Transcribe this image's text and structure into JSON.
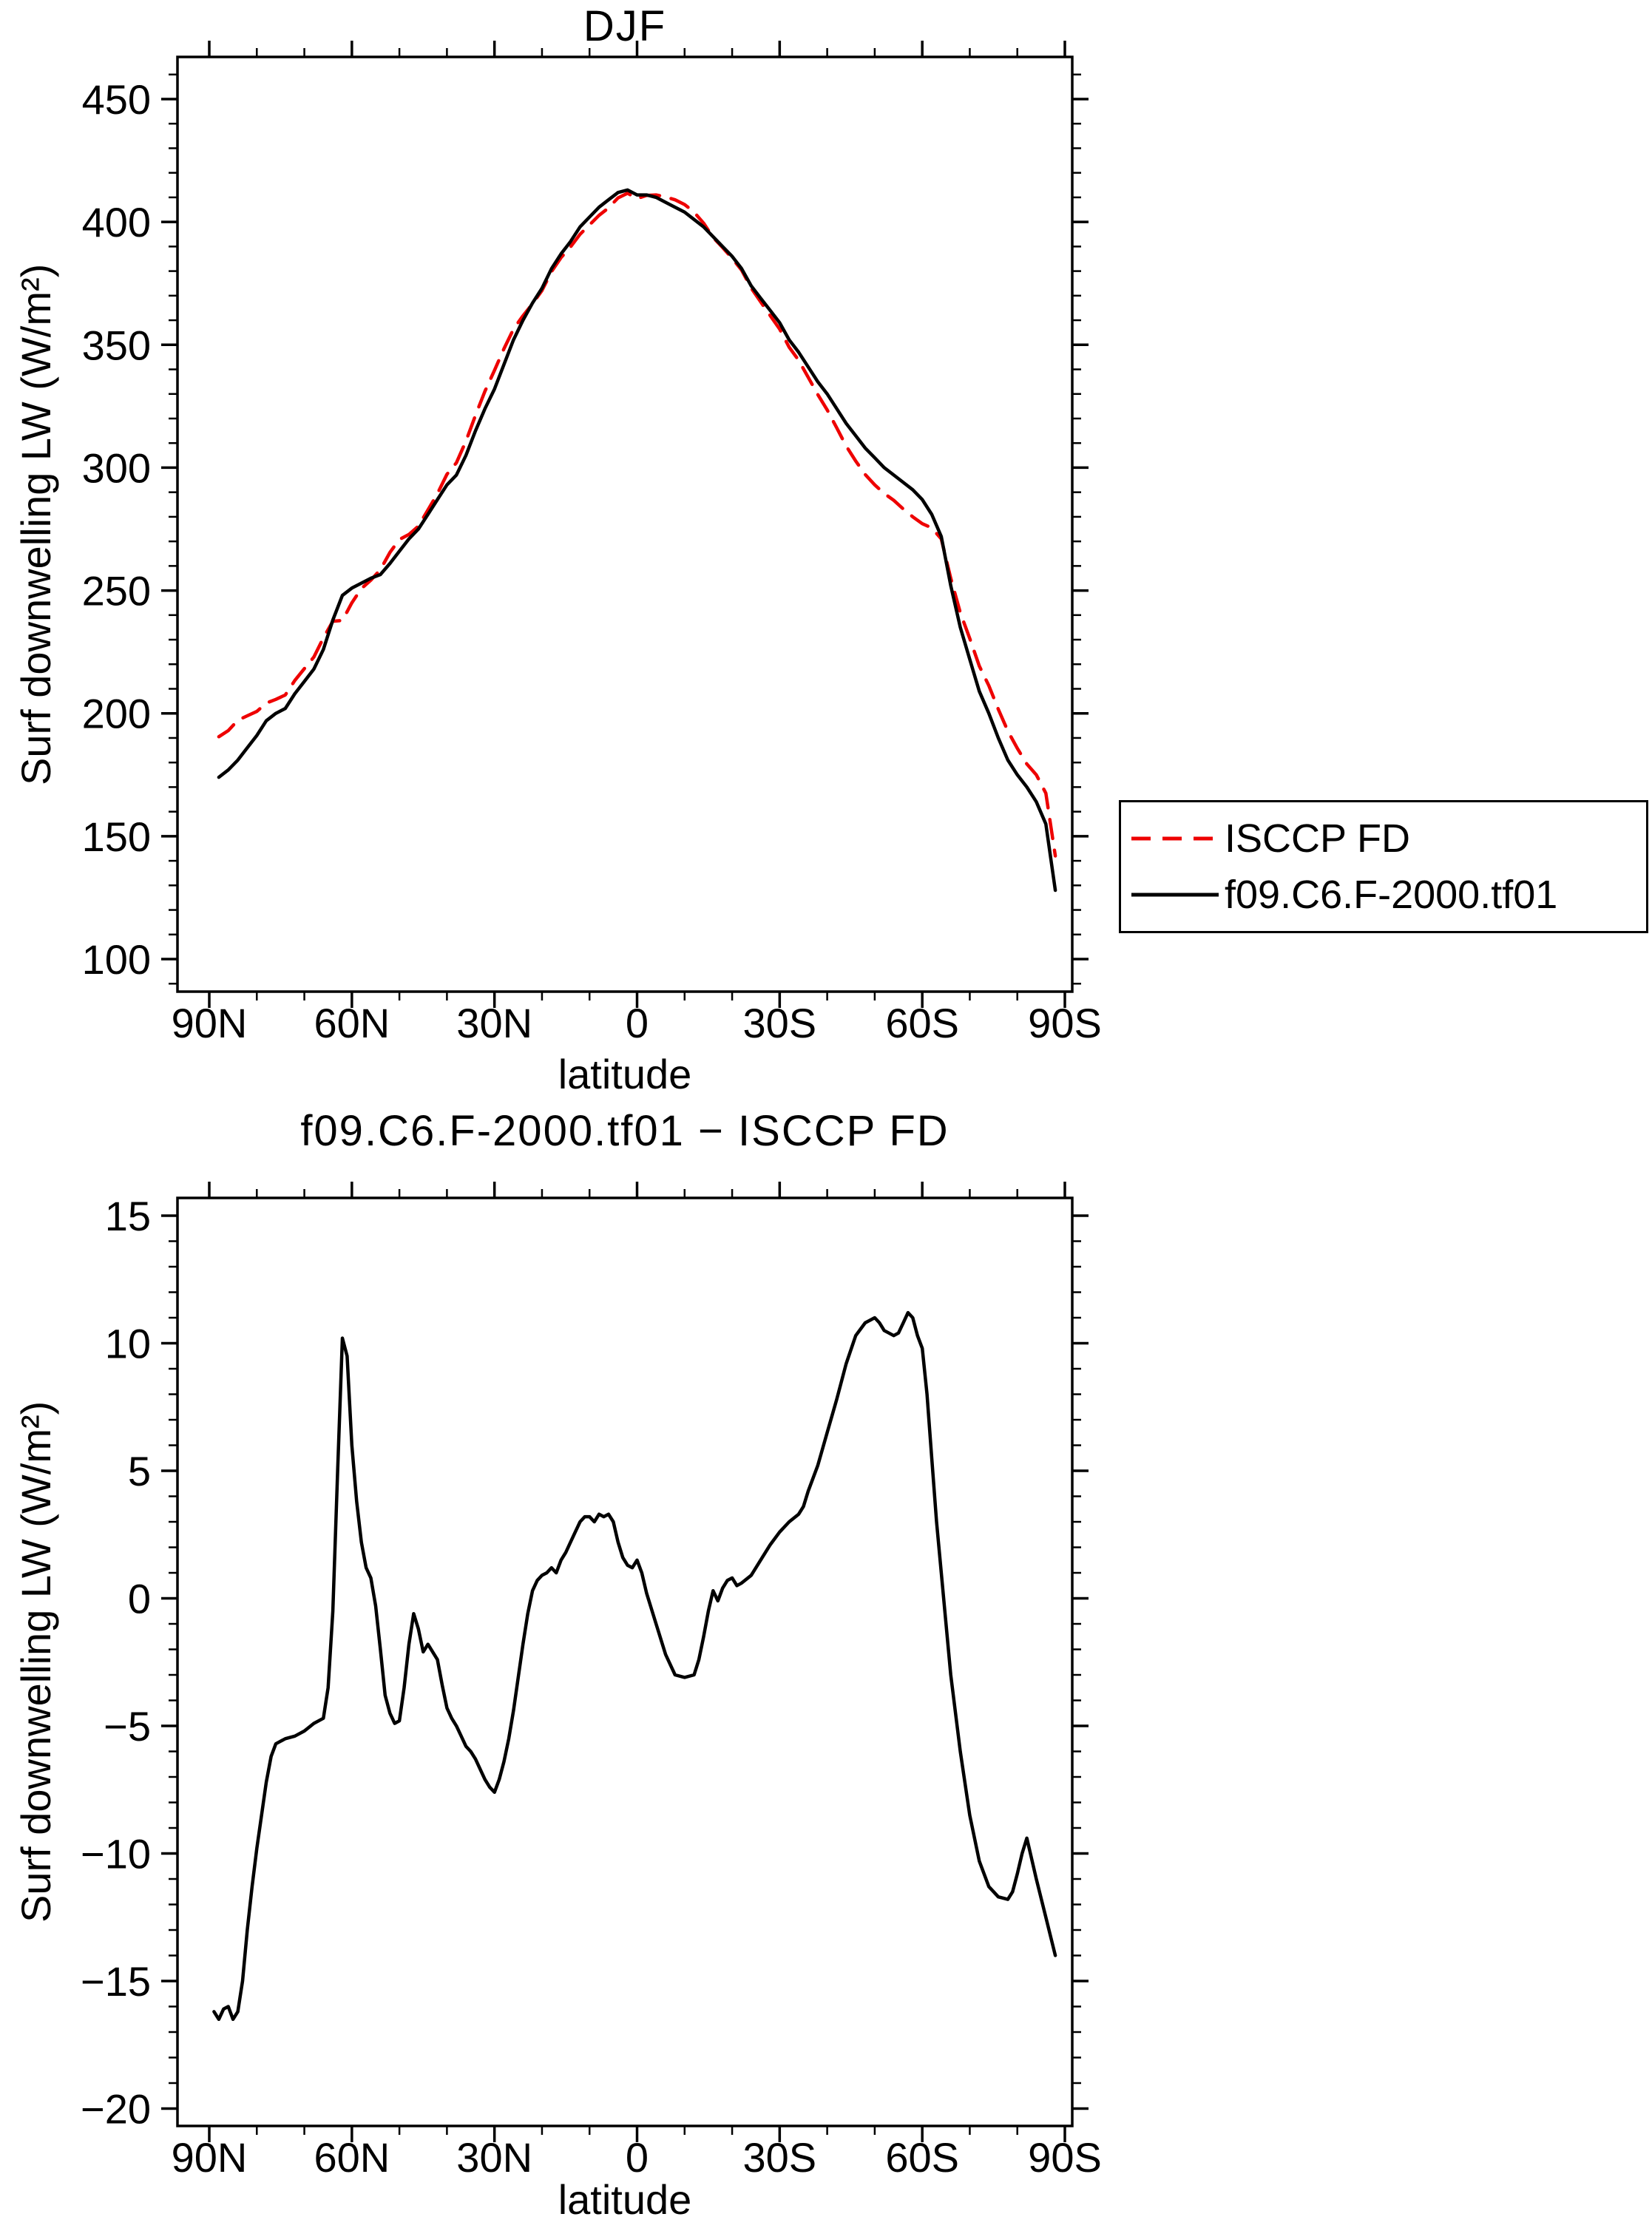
{
  "chart_data": [
    {
      "type": "line",
      "title": "DJF",
      "xlabel": "latitude",
      "ylabel": "Surf downwelling LW (W/m²)",
      "ylim": [
        100,
        450
      ],
      "xlim_deg": [
        90,
        -90
      ],
      "grid": false,
      "legend": {
        "position": "outside-right",
        "border": true
      },
      "xticks": {
        "values": [
          90,
          60,
          30,
          0,
          -30,
          -60,
          -90
        ],
        "labels": [
          "90N",
          "60N",
          "30N",
          "0",
          "30S",
          "60S",
          "90S"
        ],
        "minor_step": 10
      },
      "yticks": {
        "values": [
          450,
          400,
          350,
          300,
          250,
          200,
          150,
          100
        ],
        "labels": [
          "450",
          "400",
          "350",
          "300",
          "250",
          "200",
          "150",
          "100"
        ],
        "minor_step": 10
      },
      "series": [
        {
          "name": "ISCCP FD",
          "color": "#ee0000",
          "style": "dashed",
          "x": [
            88,
            86,
            84,
            82,
            80,
            78,
            76,
            74,
            72,
            70,
            68,
            66,
            64,
            62,
            60,
            58,
            56,
            54,
            52,
            50,
            48,
            46,
            44,
            42,
            40,
            38,
            36,
            34,
            32,
            30,
            28,
            26,
            24,
            22,
            20,
            18,
            16,
            14,
            12,
            10,
            8,
            6,
            4,
            2,
            0,
            -2,
            -4,
            -6,
            -8,
            -10,
            -12,
            -14,
            -16,
            -18,
            -20,
            -22,
            -24,
            -26,
            -28,
            -30,
            -32,
            -34,
            -36,
            -38,
            -40,
            -42,
            -44,
            -46,
            -48,
            -50,
            -52,
            -54,
            -56,
            -58,
            -60,
            -62,
            -64,
            -66,
            -68,
            -70,
            -72,
            -74,
            -76,
            -78,
            -80,
            -82,
            -84,
            -86,
            -88
          ],
          "y": [
            190.5,
            193,
            197.2,
            199,
            200.8,
            204.2,
            205.7,
            207.5,
            213.4,
            218.2,
            222.9,
            230.7,
            237.5,
            237.8,
            245,
            250.8,
            254.2,
            258.5,
            265.5,
            270.8,
            272.8,
            276.2,
            282.8,
            289.4,
            297.3,
            302,
            310.8,
            321.3,
            331.1,
            339.6,
            348.4,
            356.4,
            361.8,
            366.7,
            372.1,
            379.8,
            385.5,
            389.8,
            395,
            398.8,
            402.7,
            405.7,
            409.8,
            411.7,
            409.5,
            410.8,
            411,
            410.2,
            409,
            407.1,
            404,
            399.5,
            393.7,
            389.6,
            385.2,
            380.4,
            373.1,
            367.5,
            361.9,
            356.4,
            349,
            343.7,
            336.8,
            329.8,
            323.5,
            316.2,
            308.8,
            302.7,
            297.2,
            293,
            289.5,
            286.7,
            283.2,
            280,
            277.2,
            275.5,
            271,
            255,
            241,
            230.5,
            219.3,
            211.3,
            201.7,
            192.8,
            185.8,
            179.4,
            175,
            167.5,
            142
          ]
        },
        {
          "name": "f09.C6.F-2000.tf01",
          "color": "#000000",
          "style": "solid",
          "x": [
            88,
            86,
            84,
            82,
            80,
            78,
            76,
            74,
            72,
            70,
            68,
            66,
            64,
            62,
            60,
            58,
            56,
            54,
            52,
            50,
            48,
            46,
            44,
            42,
            40,
            38,
            36,
            34,
            32,
            30,
            28,
            26,
            24,
            22,
            20,
            18,
            16,
            14,
            12,
            10,
            8,
            6,
            4,
            2,
            0,
            -2,
            -4,
            -6,
            -8,
            -10,
            -12,
            -14,
            -16,
            -18,
            -20,
            -22,
            -24,
            -26,
            -28,
            -30,
            -32,
            -34,
            -36,
            -38,
            -40,
            -42,
            -44,
            -46,
            -48,
            -50,
            -52,
            -54,
            -56,
            -58,
            -60,
            -62,
            -64,
            -66,
            -68,
            -70,
            -72,
            -74,
            -76,
            -78,
            -80,
            -82,
            -84,
            -86,
            -88
          ],
          "y": [
            174,
            177,
            181,
            186,
            191,
            197,
            200,
            202,
            208,
            213,
            218,
            226,
            238,
            248,
            251,
            253,
            255,
            256.5,
            261,
            266,
            271,
            275,
            281,
            287,
            293,
            297,
            305,
            315,
            324,
            332,
            342,
            352,
            360,
            367,
            373,
            381,
            387,
            392,
            398,
            402,
            406,
            409,
            412,
            413,
            411,
            411,
            410,
            408,
            406,
            404,
            401,
            398,
            394,
            390,
            386,
            381,
            374,
            369,
            364,
            359,
            352,
            347,
            341,
            335,
            330,
            324,
            318,
            313,
            308,
            304,
            300,
            297,
            294,
            291,
            287,
            281,
            272,
            252,
            235,
            222,
            209,
            200,
            190,
            181,
            175,
            170,
            164,
            155,
            128
          ]
        }
      ]
    },
    {
      "type": "line",
      "title": "f09.C6.F-2000.tf01 − ISCCP FD",
      "xlabel": "latitude",
      "ylabel": "Surf downwelling LW (W/m²)",
      "ylim": [
        -20,
        15
      ],
      "xlim_deg": [
        90,
        -90
      ],
      "grid": false,
      "xticks": {
        "values": [
          90,
          60,
          30,
          0,
          -30,
          -60,
          -90
        ],
        "labels": [
          "90N",
          "60N",
          "30N",
          "0",
          "30S",
          "60S",
          "90S"
        ],
        "minor_step": 10
      },
      "yticks": {
        "values": [
          15,
          10,
          5,
          0,
          -5,
          -10,
          -15,
          -20
        ],
        "labels": [
          "15",
          "10",
          "5",
          "0",
          "−5",
          "−10",
          "−15",
          "−20"
        ],
        "minor_step": 1
      },
      "series": [
        {
          "name": "f09.C6.F-2000.tf01 minus ISCCP FD",
          "color": "#000000",
          "style": "solid",
          "x": [
            89,
            88,
            87,
            86,
            85,
            84,
            83,
            82,
            81,
            80,
            79,
            78,
            77,
            76,
            74,
            72,
            70,
            68,
            66,
            65,
            64,
            63,
            62,
            61,
            60,
            59,
            58,
            57,
            56,
            55,
            54,
            53,
            52,
            51,
            50,
            49,
            48,
            47,
            46,
            45,
            44,
            43,
            42,
            41,
            40,
            39,
            38,
            37,
            36,
            35,
            34,
            33,
            32,
            31,
            30,
            29,
            28,
            27,
            26,
            25,
            24,
            23,
            22,
            21,
            20,
            19,
            18,
            17,
            16,
            15,
            14,
            13,
            12,
            11,
            10,
            9,
            8,
            7,
            6,
            5,
            4,
            3,
            2,
            1,
            0,
            -1,
            -2,
            -4,
            -6,
            -8,
            -10,
            -12,
            -13,
            -14,
            -15,
            -16,
            -17,
            -18,
            -19,
            -20,
            -21,
            -22,
            -24,
            -26,
            -28,
            -30,
            -32,
            -34,
            -35,
            -36,
            -38,
            -40,
            -42,
            -44,
            -46,
            -48,
            -50,
            -51,
            -52,
            -54,
            -55,
            -56,
            -57,
            -58,
            -59,
            -60,
            -61,
            -62,
            -63,
            -64,
            -65,
            -66,
            -68,
            -70,
            -72,
            -74,
            -76,
            -78,
            -79,
            -80,
            -81,
            -82,
            -83,
            -84,
            -86,
            -88
          ],
          "y": [
            -16.2,
            -16.5,
            -16.1,
            -16.0,
            -16.5,
            -16.2,
            -15.0,
            -13.0,
            -11.3,
            -9.8,
            -8.5,
            -7.2,
            -6.2,
            -5.7,
            -5.5,
            -5.4,
            -5.2,
            -4.9,
            -4.7,
            -3.5,
            -0.5,
            5.0,
            10.2,
            9.5,
            6.0,
            3.8,
            2.2,
            1.2,
            0.8,
            -0.3,
            -2.0,
            -3.8,
            -4.5,
            -4.9,
            -4.8,
            -3.5,
            -1.8,
            -0.6,
            -1.2,
            -2.1,
            -1.8,
            -2.1,
            -2.4,
            -3.4,
            -4.3,
            -4.7,
            -5.0,
            -5.4,
            -5.8,
            -6.0,
            -6.3,
            -6.7,
            -7.1,
            -7.4,
            -7.6,
            -7.1,
            -6.4,
            -5.5,
            -4.4,
            -3.1,
            -1.8,
            -0.6,
            0.3,
            0.7,
            0.9,
            1.0,
            1.2,
            1.0,
            1.5,
            1.8,
            2.2,
            2.6,
            3.0,
            3.2,
            3.2,
            3.0,
            3.3,
            3.2,
            3.3,
            3.0,
            2.2,
            1.6,
            1.3,
            1.2,
            1.5,
            1.0,
            0.2,
            -1.0,
            -2.2,
            -3.0,
            -3.1,
            -3.0,
            -2.4,
            -1.5,
            -0.5,
            0.3,
            -0.1,
            0.4,
            0.7,
            0.8,
            0.5,
            0.6,
            0.9,
            1.5,
            2.1,
            2.6,
            3.0,
            3.3,
            3.6,
            4.2,
            5.2,
            6.5,
            7.8,
            9.2,
            10.3,
            10.8,
            11.0,
            10.8,
            10.5,
            10.3,
            10.4,
            10.8,
            11.2,
            11.0,
            10.3,
            9.8,
            8.0,
            5.5,
            3.0,
            1.0,
            -1.0,
            -3.0,
            -6.0,
            -8.5,
            -10.3,
            -11.3,
            -11.7,
            -11.8,
            -11.5,
            -10.8,
            -10.0,
            -9.4,
            -10.2,
            -11.0,
            -12.5,
            -14.0
          ]
        }
      ]
    }
  ]
}
